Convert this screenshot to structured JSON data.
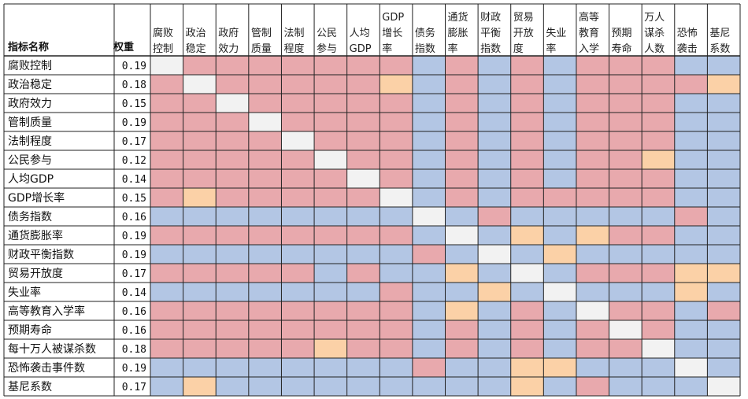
{
  "chart_data": {
    "type": "heatmap",
    "header": {
      "name_col": "指标名称",
      "weight_col": "权重"
    },
    "col_headers": [
      [
        "腐败",
        "控制"
      ],
      [
        "政治",
        "稳定"
      ],
      [
        "政府",
        "效力"
      ],
      [
        "管制",
        "质量"
      ],
      [
        "法制",
        "程度"
      ],
      [
        "公民",
        "参与"
      ],
      [
        "人均",
        "GDP"
      ],
      [
        "GDP",
        "增长",
        "率"
      ],
      [
        "债务",
        "指数"
      ],
      [
        "通货",
        "膨胀",
        "率"
      ],
      [
        "财政",
        "平衡",
        "指数"
      ],
      [
        "贸易",
        "开放",
        "度"
      ],
      [
        "失业",
        "率"
      ],
      [
        "高等",
        "教育",
        "入学"
      ],
      [
        "预期",
        "寿命"
      ],
      [
        "万人",
        "谋杀",
        "人数"
      ],
      [
        "恐怖",
        "袭击"
      ],
      [
        "基尼",
        "系数"
      ]
    ],
    "rows": [
      "腐败控制",
      "政治稳定",
      "政府效力",
      "管制质量",
      "法制程度",
      "公民参与",
      "人均GDP",
      "GDP增长率",
      "债务指数",
      "通货膨胀率",
      "财政平衡指数",
      "贸易开放度",
      "失业率",
      "高等教育入学率",
      "预期寿命",
      "每十万人被谋杀数",
      "恐怖袭击事件数",
      "基尼系数"
    ],
    "weights": [
      "0.19",
      "0.18",
      "0.15",
      "0.19",
      "0.17",
      "0.12",
      "0.14",
      "0.15",
      "0.16",
      "0.19",
      "0.19",
      "0.17",
      "0.14",
      "0.16",
      "0.16",
      "0.18",
      "0.19",
      "0.17"
    ],
    "cell_codes": [
      "WPPPPPPPBPBPBPPPBB",
      "PWPPPPPOBPBPBPPPPO",
      "PPWPPPPPBPBPBPPPBB",
      "PPPWPPPPBPBPBPPPBB",
      "PPPPWPPPBPBPBPPPBB",
      "PPPPPWPPBPBPBPPOBB",
      "PPPPPPWPBPBPBPPPBB",
      "POPPPPPWBPBPPPPPBB",
      "BBBBBBBBWBPBBBBBPB",
      "PPPPPPPPBWBOBOPPBB",
      "BBBBBBBBPBWBOBBBBB",
      "PPPPPBPBBOBWBPPPOO",
      "BBBBBBBPBBOBWBBBOB",
      "PPPPPPPPBOBPBWPPBP",
      "PPPPPPPPBPBPBPWPBB",
      "PPPPPOPPBPBPBPPWBB",
      "BBBBBBBBPBBOOBBBWB",
      "BOBBBBBBBBBOBPBBBW"
    ],
    "legend_colors": {
      "P": "#e8a9ad",
      "B": "#b3c6e4",
      "O": "#fbd1a7",
      "W": "#f2f2f2"
    }
  }
}
